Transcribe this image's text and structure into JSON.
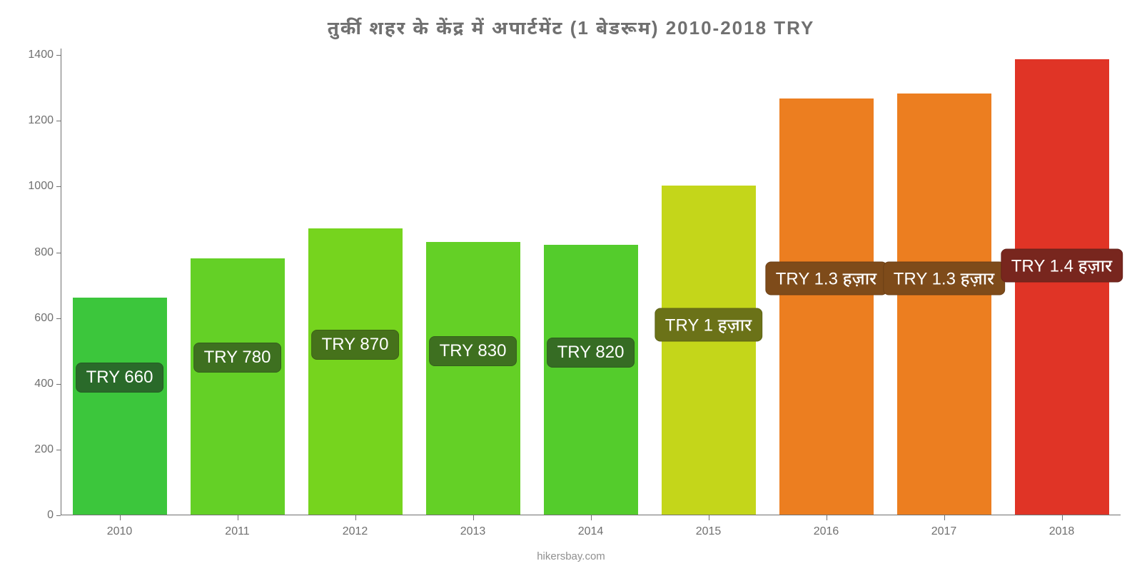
{
  "chart": {
    "type": "bar",
    "title": "तुर्की शहर के केंद्र में अपार्टमेंट (1 बेडरूम) 2010-2018 TRY",
    "title_color": "#707070",
    "title_fontsize": 26,
    "background_color": "#ffffff",
    "axis_color": "#707070",
    "tick_font_color": "#707070",
    "tick_fontsize": 16,
    "y": {
      "min": 0,
      "max": 1420,
      "ticks": [
        0,
        200,
        400,
        600,
        800,
        1000,
        1200,
        1400
      ]
    },
    "categories": [
      "2010",
      "2011",
      "2012",
      "2013",
      "2014",
      "2015",
      "2016",
      "2017",
      "2018"
    ],
    "values": [
      660,
      780,
      870,
      830,
      820,
      1000,
      1265,
      1280,
      1385
    ],
    "value_labels": [
      "TRY 660",
      "TRY 780",
      "TRY 870",
      "TRY 830",
      "TRY 820",
      "TRY 1 हज़ार",
      "TRY 1.3 हज़ार",
      "TRY 1.3 हज़ार",
      "TRY 1.4 हज़ार"
    ],
    "bar_colors": [
      "#3cc63c",
      "#64d026",
      "#76d41e",
      "#64d026",
      "#54cc2c",
      "#c4d61a",
      "#ec7e20",
      "#ec7e20",
      "#e03426"
    ],
    "badge_bg_colors": [
      "#2a6a2a",
      "#3e7020",
      "#46721b",
      "#3e7020",
      "#366c24",
      "#6b7218",
      "#7e4b1a",
      "#7e4b1a",
      "#78261e"
    ],
    "badge_centers_abs": [
      420,
      480,
      520,
      500,
      495,
      580,
      720,
      720,
      760
    ],
    "label_fontsize": 24,
    "bar_width_pct": 80
  },
  "footer": {
    "credit": "hikersbay.com",
    "color": "#909090"
  }
}
